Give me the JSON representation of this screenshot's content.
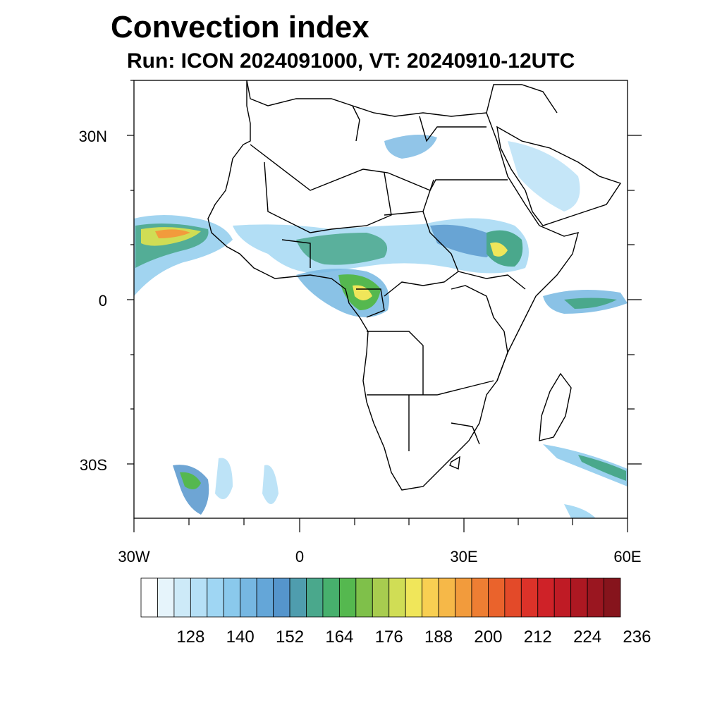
{
  "header": {
    "title": "Convection index",
    "subtitle": "Run: ICON 2024091000,  VT: 20240910-12UTC"
  },
  "map": {
    "lat_ticks": [
      "30N",
      "0",
      "30S"
    ],
    "lon_ticks": [
      "30W",
      "0",
      "30E",
      "60E"
    ]
  },
  "colorbar": {
    "labels": [
      "128",
      "140",
      "152",
      "164",
      "176",
      "188",
      "200",
      "212",
      "224",
      "236"
    ],
    "colors": [
      "#ffffff",
      "#e6f4fb",
      "#cdeaf8",
      "#b6e0f6",
      "#9fd6f3",
      "#8ac9ec",
      "#76b7e2",
      "#64a6d8",
      "#5595cc",
      "#4f9dae",
      "#4aa88c",
      "#47b06d",
      "#55b84f",
      "#7fc04a",
      "#a8cc4f",
      "#d0dd55",
      "#f0e65a",
      "#f8cf52",
      "#f6b848",
      "#f29b3c",
      "#ee7e33",
      "#ea632c",
      "#e34a29",
      "#dc3229",
      "#cf2228",
      "#bf1b25",
      "#ad1822",
      "#9a1620",
      "#86141c"
    ]
  }
}
